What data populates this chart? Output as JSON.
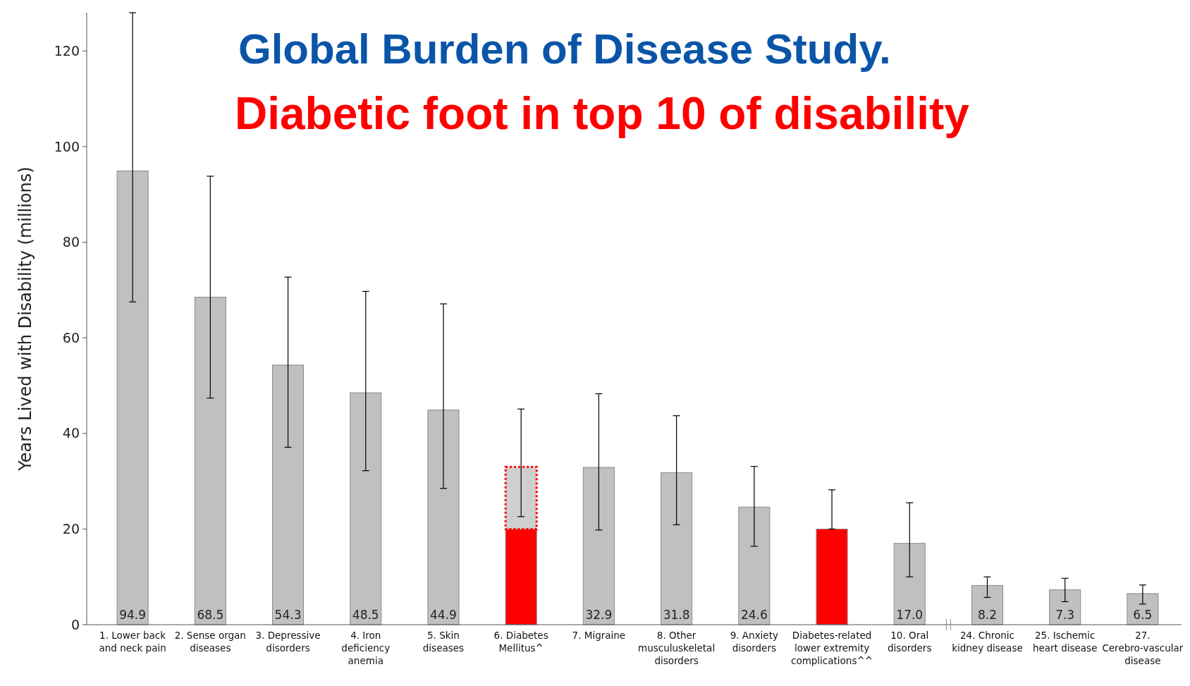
{
  "chart_data": {
    "type": "bar",
    "title": "Global Burden of Disease Study.",
    "subtitle": "Diabetic foot in top 10 of disability",
    "ylabel": "Years Lived with Disability (millions)",
    "categories": [
      "1. Lower back and neck pain",
      "2. Sense organ diseases",
      "3. Depressive disorders",
      "4. Iron deficiency anemia",
      "5. Skin diseases",
      "6. Diabetes Mellitus^",
      "7. Migraine",
      "8. Other musculuskeletal disorders",
      "9. Anxiety disorders",
      "Diabetes-related lower extremity complications^^",
      "10. Oral disorders",
      "24. Chronic kidney disease",
      "25. Ischemic heart disease",
      "27. Cerebro-vascular disease"
    ],
    "stacked": true,
    "ylim": [
      0,
      128
    ],
    "yticks": [
      0,
      20,
      40,
      60,
      80,
      100,
      120
    ],
    "grid": false,
    "series": [
      {
        "values": [
          94.9,
          68.5,
          54.3,
          48.5,
          44.9,
          20,
          32.9,
          31.8,
          24.6,
          20,
          17.0,
          8.2,
          7.3,
          6.5
        ],
        "colors": [
          "#c0c0c0",
          "#c0c0c0",
          "#c0c0c0",
          "#c0c0c0",
          "#c0c0c0",
          "#ff0000",
          "#c0c0c0",
          "#c0c0c0",
          "#c0c0c0",
          "#ff0000",
          "#c0c0c0",
          "#c0c0c0",
          "#c0c0c0",
          "#c0c0c0"
        ],
        "value_labels": [
          "94.9",
          "68.5",
          "54.3",
          "48.5",
          "44.9",
          null,
          "32.9",
          "31.8",
          "24.6",
          null,
          "17.0",
          "8.2",
          "7.3",
          "6.5"
        ],
        "errors": [
          [
            67.5,
            128
          ],
          [
            47.4,
            93.8
          ],
          [
            37.1,
            72.7
          ],
          [
            32.2,
            69.7
          ],
          [
            28.5,
            67.1
          ],
          null,
          [
            19.8,
            48.3
          ],
          [
            20.9,
            43.7
          ],
          [
            16.4,
            33.1
          ],
          [
            20,
            28.2
          ],
          [
            10,
            25.5
          ],
          [
            5.7,
            10
          ],
          [
            4.8,
            9.7
          ],
          [
            4.3,
            8.3
          ]
        ]
      },
      {
        "values": [
          null,
          null,
          null,
          null,
          null,
          13,
          null,
          null,
          null,
          null,
          null,
          null,
          null,
          null
        ],
        "color": "#ff0000",
        "line_style": "dotted",
        "errors": [
          null,
          null,
          null,
          null,
          null,
          [
            22.6,
            45.1
          ],
          null,
          null,
          null,
          null,
          null,
          null,
          null,
          null
        ]
      }
    ]
  }
}
